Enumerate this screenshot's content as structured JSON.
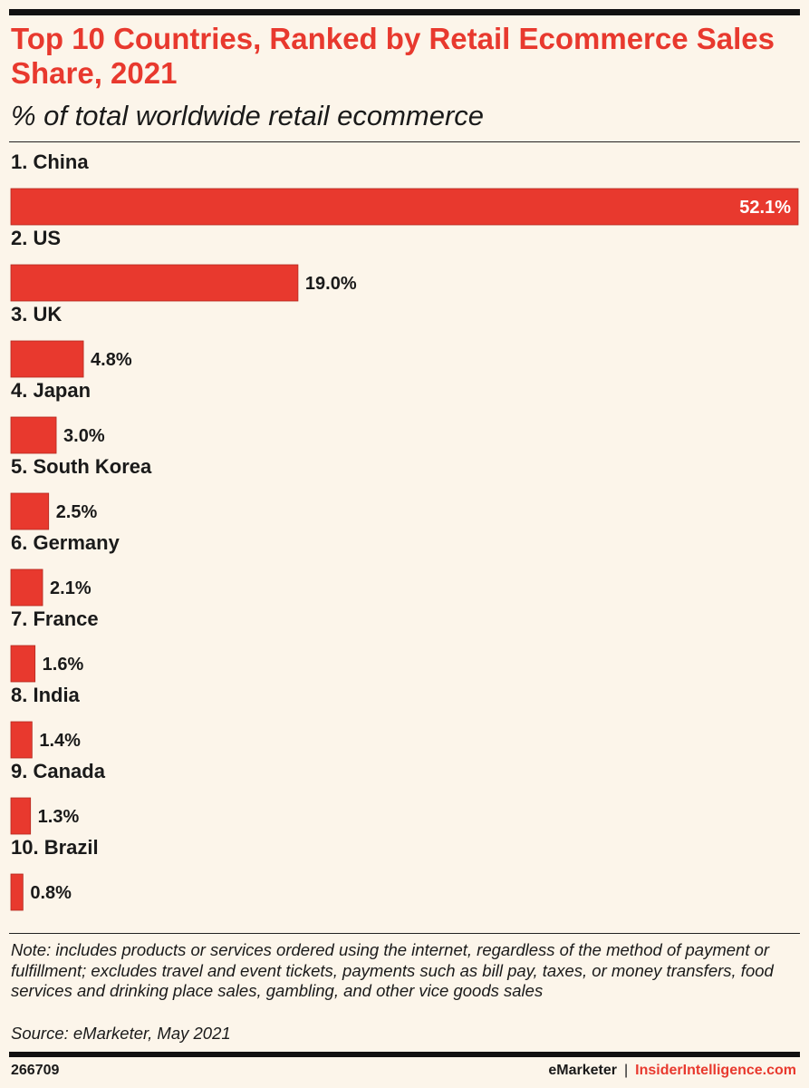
{
  "header": {
    "title": "Top 10 Countries, Ranked by Retail Ecommerce Sales Share, 2021",
    "subtitle": "% of total worldwide retail ecommerce"
  },
  "chart_data": {
    "type": "bar",
    "orientation": "horizontal",
    "title": "Top 10 Countries, Ranked by Retail Ecommerce Sales Share, 2021",
    "subtitle": "% of total worldwide retail ecommerce",
    "categories": [
      "1. China",
      "2. US",
      "3. UK",
      "4. Japan",
      "5. South Korea",
      "6. Germany",
      "7. France",
      "8. India",
      "9. Canada",
      "10. Brazil"
    ],
    "values": [
      52.1,
      19.0,
      4.8,
      3.0,
      2.5,
      2.1,
      1.6,
      1.4,
      1.3,
      0.8
    ],
    "value_labels": [
      "52.1%",
      "19.0%",
      "4.8%",
      "3.0%",
      "2.5%",
      "2.1%",
      "1.6%",
      "1.4%",
      "1.3%",
      "0.8%"
    ],
    "xlim": [
      0,
      52.1
    ],
    "grid": false,
    "legend": "none",
    "bar_color": "#e8392e"
  },
  "footer": {
    "note": "Note: includes products or services ordered using the internet, regardless of the method of payment or fulfillment; excludes travel and event tickets, payments such as bill pay, taxes, or money transfers, food services and drinking place sales, gambling, and other vice goods sales",
    "source": "Source: eMarketer, May 2021",
    "chart_id": "266709",
    "brand1": "eMarketer",
    "separator": "|",
    "brand2": "InsiderIntelligence.com"
  },
  "colors": {
    "accent": "#e8392e",
    "background": "#fcf5ea",
    "text": "#1a1a1a"
  }
}
